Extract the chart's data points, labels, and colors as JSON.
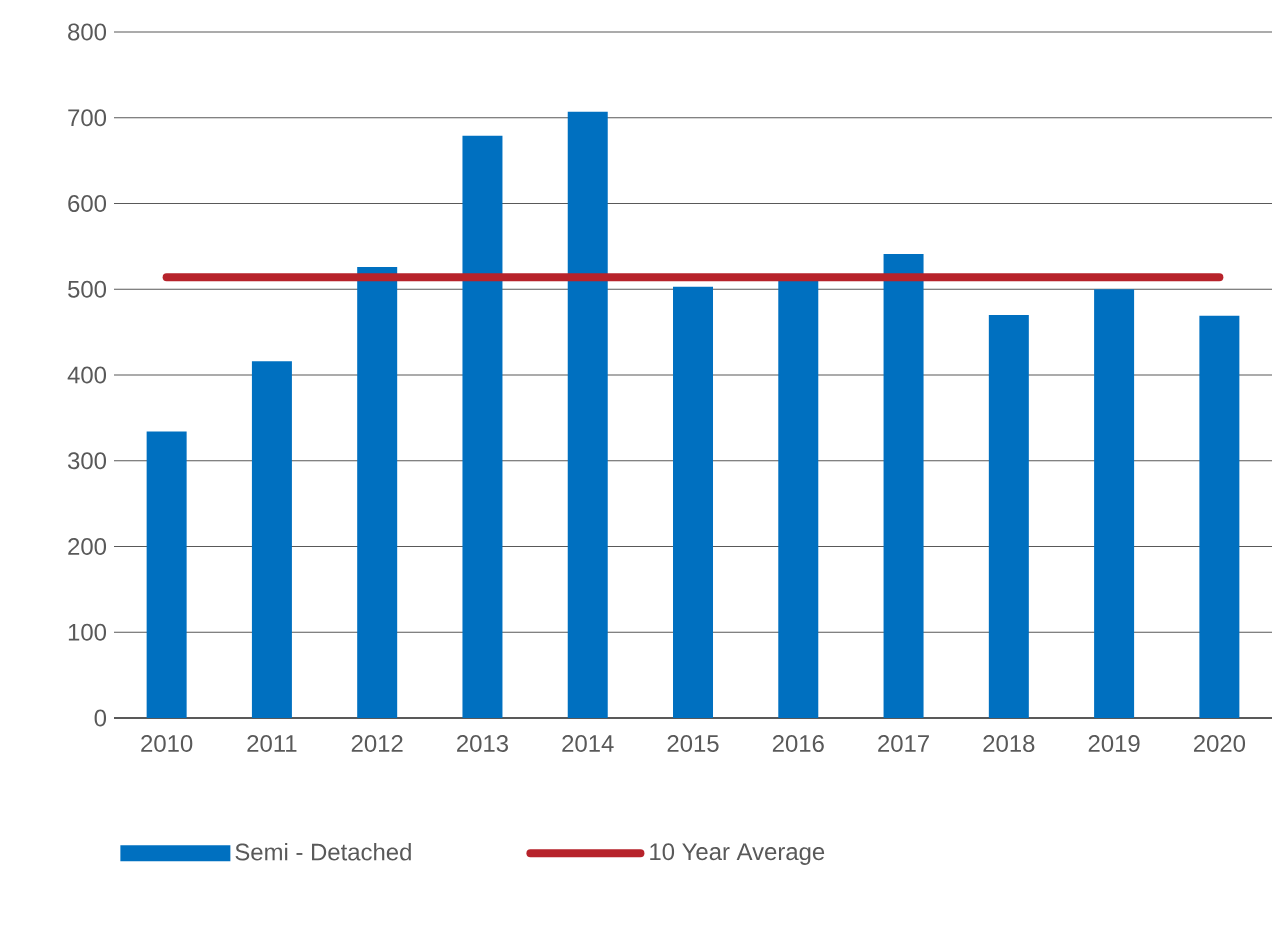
{
  "chart_data": {
    "type": "bar",
    "categories": [
      "2010",
      "2011",
      "2012",
      "2013",
      "2014",
      "2015",
      "2016",
      "2017",
      "2018",
      "2019",
      "2020"
    ],
    "series": [
      {
        "name": "Semi - Detached",
        "color": "#0070c0",
        "values": [
          334,
          416,
          526,
          679,
          707,
          503,
          512,
          541,
          470,
          500,
          469
        ]
      },
      {
        "name": "10 Year Average",
        "type": "line",
        "color": "#b7232b",
        "values": [
          514,
          514,
          514,
          514,
          514,
          514,
          514,
          514,
          514,
          514,
          514
        ]
      }
    ],
    "ylim": [
      0,
      800
    ],
    "yticks": [
      0,
      100,
      200,
      300,
      400,
      500,
      600,
      700,
      800
    ],
    "grid": "y",
    "legend": "bottom",
    "marker": "none"
  }
}
